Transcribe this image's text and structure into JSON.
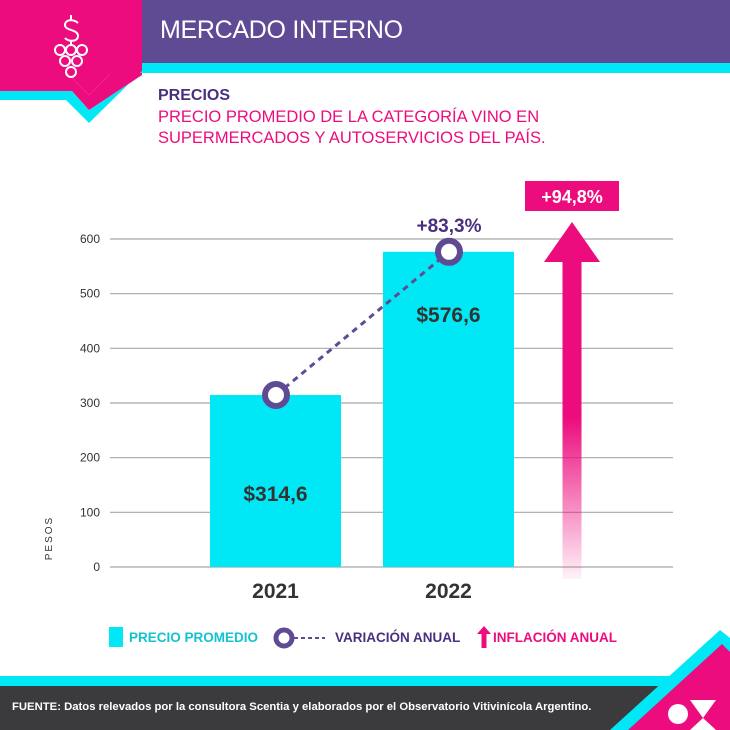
{
  "header": {
    "title": "MERCADO INTERNO",
    "icon": "dollar-grapes-icon"
  },
  "subtitle": {
    "section": "PRECIOS",
    "description_line1": "PRECIO PROMEDIO DE LA CATEGORÍA VINO EN",
    "description_line2": "SUPERMERCADOS Y AUTOSERVICIOS DEL PAÍS."
  },
  "colors": {
    "purple": "#5f4b94",
    "pink": "#ec0c7d",
    "cyan": "#00e8f6",
    "dark": "#3b3b3d",
    "text_dark": "#333333"
  },
  "chart_data": {
    "type": "bar",
    "title": "PRECIO PROMEDIO DE LA CATEGORÍA VINO EN SUPERMERCADOS Y AUTOSERVICIOS DEL PAÍS.",
    "xlabel": "",
    "ylabel": "PESOS",
    "ylim": [
      0,
      600
    ],
    "yticks": [
      0,
      100,
      200,
      300,
      400,
      500,
      600
    ],
    "grid": true,
    "categories": [
      "2021",
      "2022"
    ],
    "series": [
      {
        "name": "PRECIO PROMEDIO",
        "type": "bar",
        "values": [
          314.6,
          576.6
        ],
        "labels": [
          "$314,6",
          "$576,6"
        ]
      },
      {
        "name": "VARIACIÓN ANUAL",
        "type": "line",
        "values": [
          314.6,
          576.6
        ],
        "annotation": "+83,3%"
      }
    ],
    "inflation": {
      "name": "INFLACIÓN ANUAL",
      "value_label": "+94,8%",
      "value_percent": 94.8
    },
    "legend_position": "bottom"
  },
  "legend": {
    "items": [
      {
        "label": "PRECIO PROMEDIO",
        "icon": "cyan-square-icon"
      },
      {
        "label": "VARIACIÓN ANUAL",
        "icon": "circle-dashed-line-icon"
      },
      {
        "label": "INFLACIÓN ANUAL",
        "icon": "up-arrow-icon"
      }
    ]
  },
  "footer": {
    "source": "FUENTE: Datos relevados por la consultora Scentia y elaborados por el Observatorio Vitivinícola Argentino.",
    "logo": "ov-logo-icon"
  }
}
